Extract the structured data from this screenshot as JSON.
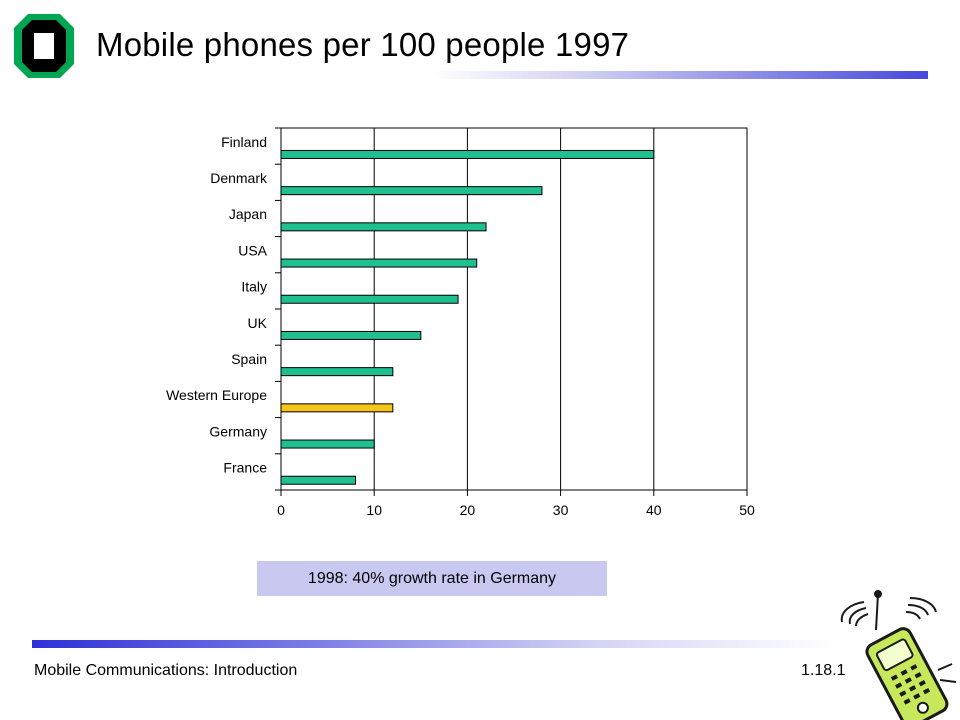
{
  "slide": {
    "title": "Mobile phones per 100 people 1997",
    "callout": "1998: 40% growth rate in Germany",
    "footer_left": "Mobile Communications: Introduction",
    "footer_right": "1.18.1"
  },
  "colors": {
    "bar": "#1fbf8f",
    "highlight_bar": "#f5c518",
    "callout_bg": "#c8c8f0",
    "logo": "#00a651"
  },
  "icons": {
    "logo": "university-logo-icon",
    "phone": "mobile-phone-clipart-icon"
  },
  "chart_data": {
    "type": "bar",
    "orientation": "horizontal",
    "title": "",
    "xlabel": "",
    "ylabel": "",
    "xlim": [
      0,
      50
    ],
    "xticks": [
      0,
      10,
      20,
      30,
      40,
      50
    ],
    "grid": "vertical",
    "categories": [
      "Finland",
      "Denmark",
      "Japan",
      "USA",
      "Italy",
      "UK",
      "Spain",
      "Western Europe",
      "Germany",
      "France"
    ],
    "values": [
      40,
      28,
      22,
      21,
      19,
      15,
      12,
      12,
      10,
      8
    ],
    "highlight": "Western Europe"
  }
}
